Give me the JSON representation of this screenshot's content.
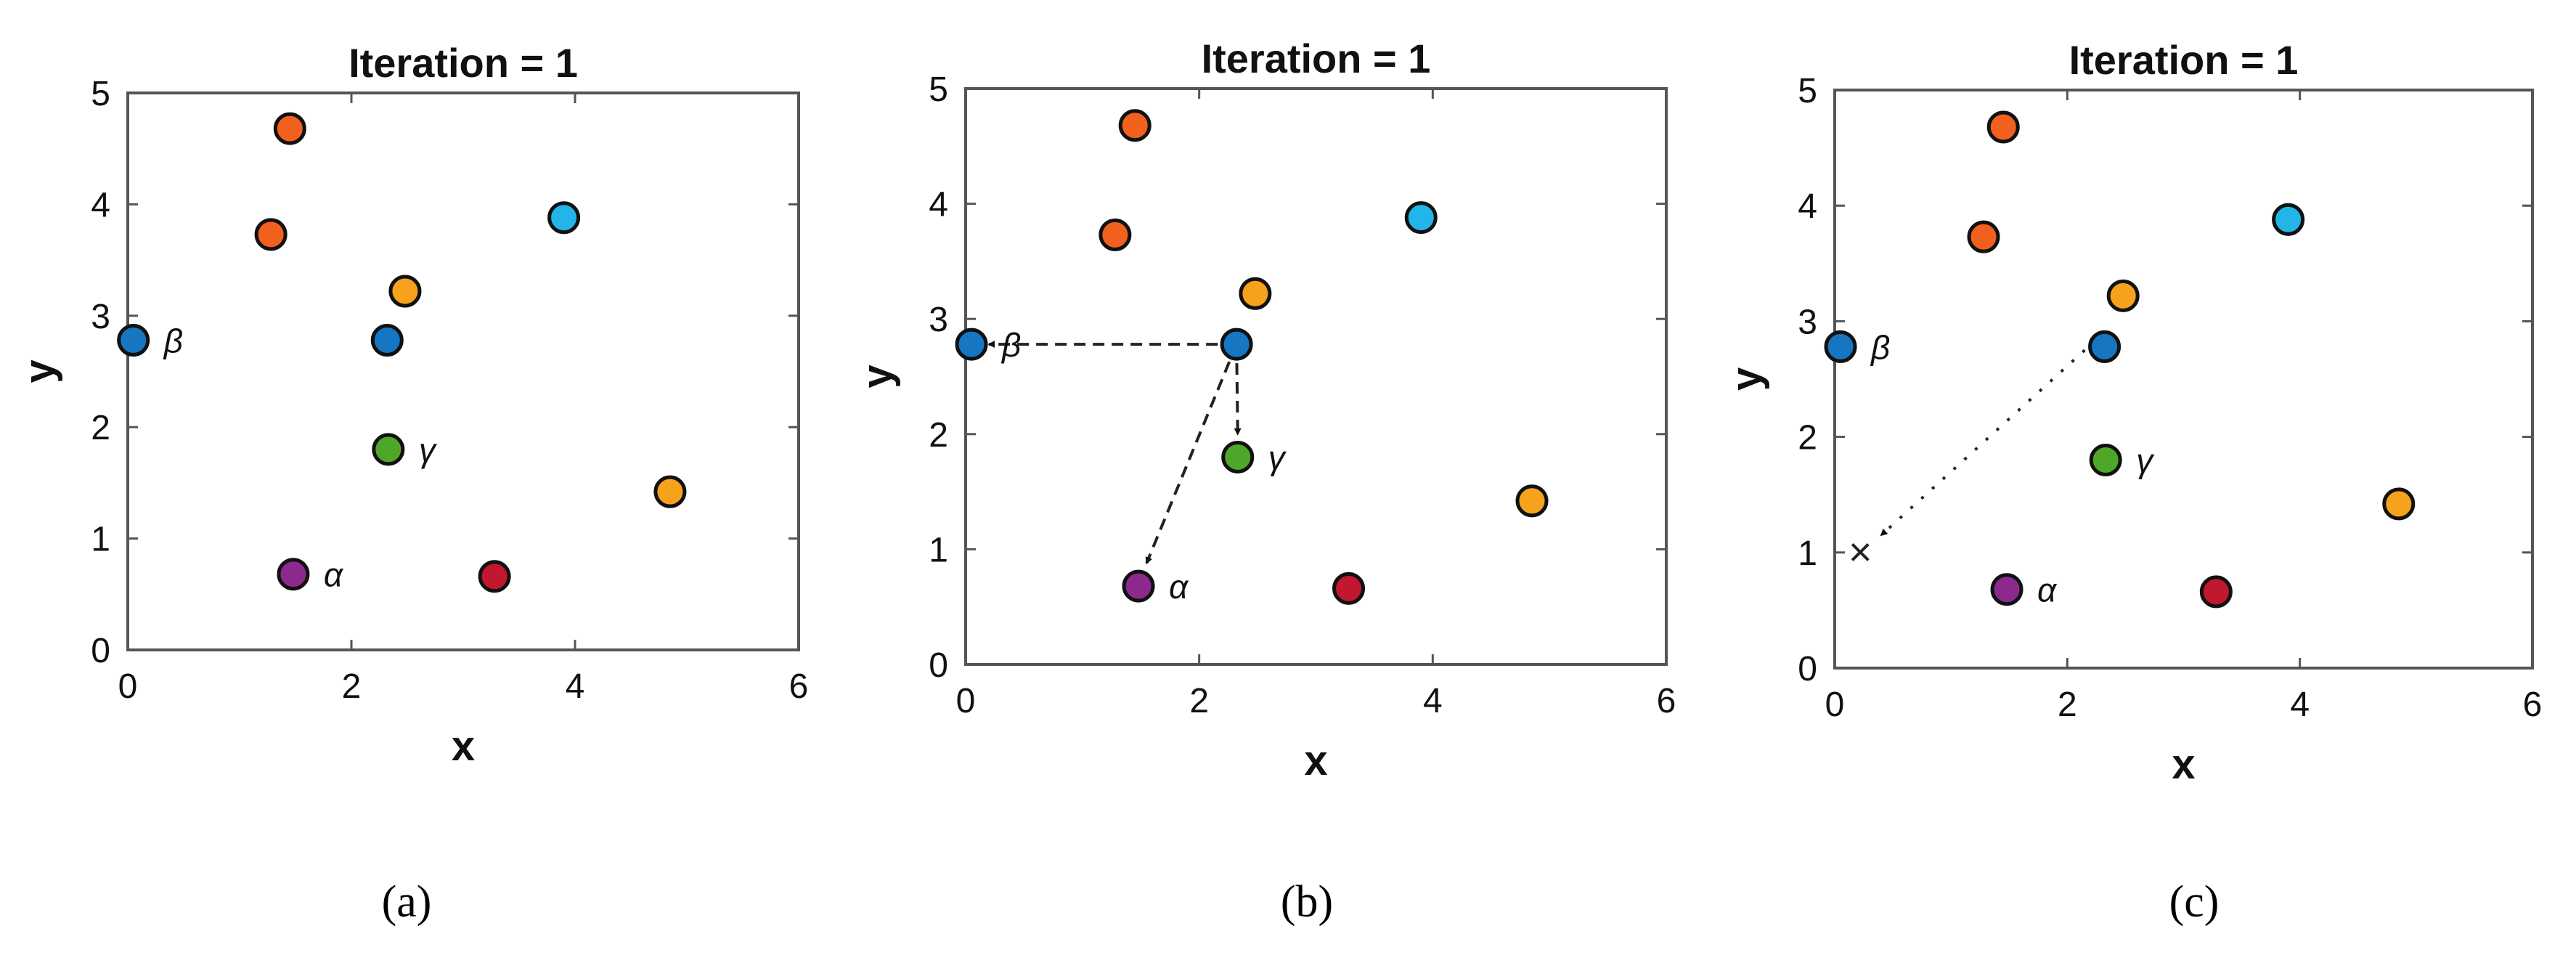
{
  "figure": {
    "captions": [
      "(a)",
      "(b)",
      "(c)"
    ]
  },
  "chart_data": [
    {
      "type": "scatter",
      "title": "Iteration = 1",
      "xlabel": "x",
      "ylabel": "y",
      "xlim": [
        0,
        6
      ],
      "ylim": [
        0,
        5
      ],
      "xticks": [
        "0",
        "2",
        "4",
        "6"
      ],
      "yticks": [
        "0",
        "1",
        "2",
        "3",
        "4",
        "5"
      ],
      "grid": false,
      "points": [
        {
          "x": 1.45,
          "y": 4.68,
          "color": "#f2601e"
        },
        {
          "x": 1.28,
          "y": 3.73,
          "color": "#f2601e"
        },
        {
          "x": 3.9,
          "y": 3.88,
          "color": "#22b5e8"
        },
        {
          "x": 2.48,
          "y": 3.22,
          "color": "#f6a21c"
        },
        {
          "x": 0.05,
          "y": 2.78,
          "color": "#1676c2",
          "label": "β"
        },
        {
          "x": 2.32,
          "y": 2.78,
          "color": "#1676c2"
        },
        {
          "x": 2.33,
          "y": 1.8,
          "color": "#4fa72a",
          "label": "γ"
        },
        {
          "x": 4.85,
          "y": 1.42,
          "color": "#f6a21c"
        },
        {
          "x": 1.48,
          "y": 0.68,
          "color": "#8b2a8c",
          "label": "α"
        },
        {
          "x": 3.28,
          "y": 0.66,
          "color": "#c1172f"
        }
      ],
      "arrows": []
    },
    {
      "type": "scatter",
      "title": "Iteration = 1",
      "xlabel": "x",
      "ylabel": "y",
      "xlim": [
        0,
        6
      ],
      "ylim": [
        0,
        5
      ],
      "xticks": [
        "0",
        "2",
        "4",
        "6"
      ],
      "yticks": [
        "0",
        "1",
        "2",
        "3",
        "4",
        "5"
      ],
      "grid": false,
      "points": [
        {
          "x": 1.45,
          "y": 4.68,
          "color": "#f2601e"
        },
        {
          "x": 1.28,
          "y": 3.73,
          "color": "#f2601e"
        },
        {
          "x": 3.9,
          "y": 3.88,
          "color": "#22b5e8"
        },
        {
          "x": 2.48,
          "y": 3.22,
          "color": "#f6a21c"
        },
        {
          "x": 0.05,
          "y": 2.78,
          "color": "#1676c2",
          "label": "β"
        },
        {
          "x": 2.32,
          "y": 2.78,
          "color": "#1676c2"
        },
        {
          "x": 2.33,
          "y": 1.8,
          "color": "#4fa72a",
          "label": "γ"
        },
        {
          "x": 4.85,
          "y": 1.42,
          "color": "#f6a21c"
        },
        {
          "x": 1.48,
          "y": 0.68,
          "color": "#8b2a8c",
          "label": "α"
        },
        {
          "x": 3.28,
          "y": 0.66,
          "color": "#c1172f"
        }
      ],
      "arrows": [
        {
          "from": [
            2.32,
            2.78
          ],
          "to": [
            0.2,
            2.78
          ],
          "style": "dashed"
        },
        {
          "from": [
            2.32,
            2.78
          ],
          "to": [
            2.33,
            2.0
          ],
          "style": "dashed"
        },
        {
          "from": [
            2.32,
            2.78
          ],
          "to": [
            1.55,
            0.88
          ],
          "style": "dashed"
        }
      ]
    },
    {
      "type": "scatter",
      "title": "Iteration = 1",
      "xlabel": "x",
      "ylabel": "y",
      "xlim": [
        0,
        6
      ],
      "ylim": [
        0,
        5
      ],
      "xticks": [
        "0",
        "2",
        "4",
        "6"
      ],
      "yticks": [
        "0",
        "1",
        "2",
        "3",
        "4",
        "5"
      ],
      "grid": false,
      "points": [
        {
          "x": 1.45,
          "y": 4.68,
          "color": "#f2601e"
        },
        {
          "x": 1.28,
          "y": 3.73,
          "color": "#f2601e"
        },
        {
          "x": 3.9,
          "y": 3.88,
          "color": "#22b5e8"
        },
        {
          "x": 2.48,
          "y": 3.22,
          "color": "#f6a21c"
        },
        {
          "x": 0.05,
          "y": 2.78,
          "color": "#1676c2",
          "label": "β"
        },
        {
          "x": 2.32,
          "y": 2.78,
          "color": "#1676c2"
        },
        {
          "x": 2.33,
          "y": 1.8,
          "color": "#4fa72a",
          "label": "γ"
        },
        {
          "x": 4.85,
          "y": 1.42,
          "color": "#f6a21c"
        },
        {
          "x": 1.48,
          "y": 0.68,
          "color": "#8b2a8c",
          "label": "α"
        },
        {
          "x": 3.28,
          "y": 0.66,
          "color": "#c1172f"
        }
      ],
      "arrows": [
        {
          "from": [
            2.15,
            2.75
          ],
          "to": [
            0.4,
            1.15
          ],
          "style": "dotted"
        }
      ],
      "cross_marker": {
        "x": 0.22,
        "y": 1.0,
        "label": "×"
      }
    }
  ]
}
